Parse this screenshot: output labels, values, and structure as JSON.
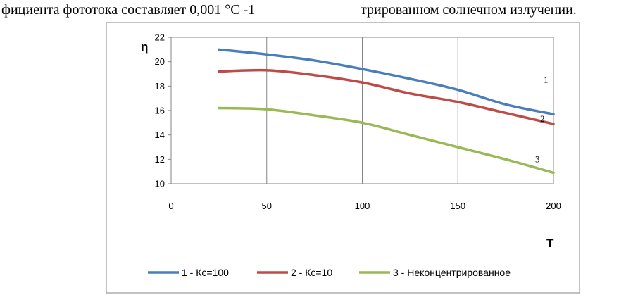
{
  "page_text": {
    "left": "фициента фототока составляет 0,001 °С -1",
    "right": "трированном солнечном излучении."
  },
  "chart_data": {
    "type": "line",
    "title": "",
    "xlabel": "T",
    "ylabel": "η",
    "xlim": [
      0,
      200
    ],
    "ylim": [
      10,
      22
    ],
    "x_ticks": [
      0,
      50,
      100,
      150,
      200
    ],
    "y_ticks": [
      10,
      12,
      14,
      16,
      18,
      20,
      22
    ],
    "grid": "vertical",
    "legend_position": "bottom",
    "series": [
      {
        "name": "1 - Кс=100",
        "color": "#4a7ebb",
        "curve_label": "1",
        "x": [
          25,
          50,
          75,
          100,
          125,
          150,
          175,
          200
        ],
        "y": [
          21.0,
          20.6,
          20.1,
          19.4,
          18.6,
          17.7,
          16.5,
          15.7
        ]
      },
      {
        "name": "2 - Кс=10",
        "color": "#be4b48",
        "curve_label": "2",
        "x": [
          25,
          50,
          75,
          100,
          125,
          150,
          175,
          200
        ],
        "y": [
          19.2,
          19.3,
          18.9,
          18.3,
          17.4,
          16.7,
          15.8,
          14.9
        ]
      },
      {
        "name": "3 - Неконцентрированное",
        "color": "#98b954",
        "curve_label": "3",
        "x": [
          25,
          50,
          75,
          100,
          125,
          150,
          175,
          200
        ],
        "y": [
          16.2,
          16.1,
          15.6,
          15.0,
          14.0,
          13.0,
          12.0,
          10.9
        ]
      }
    ]
  }
}
